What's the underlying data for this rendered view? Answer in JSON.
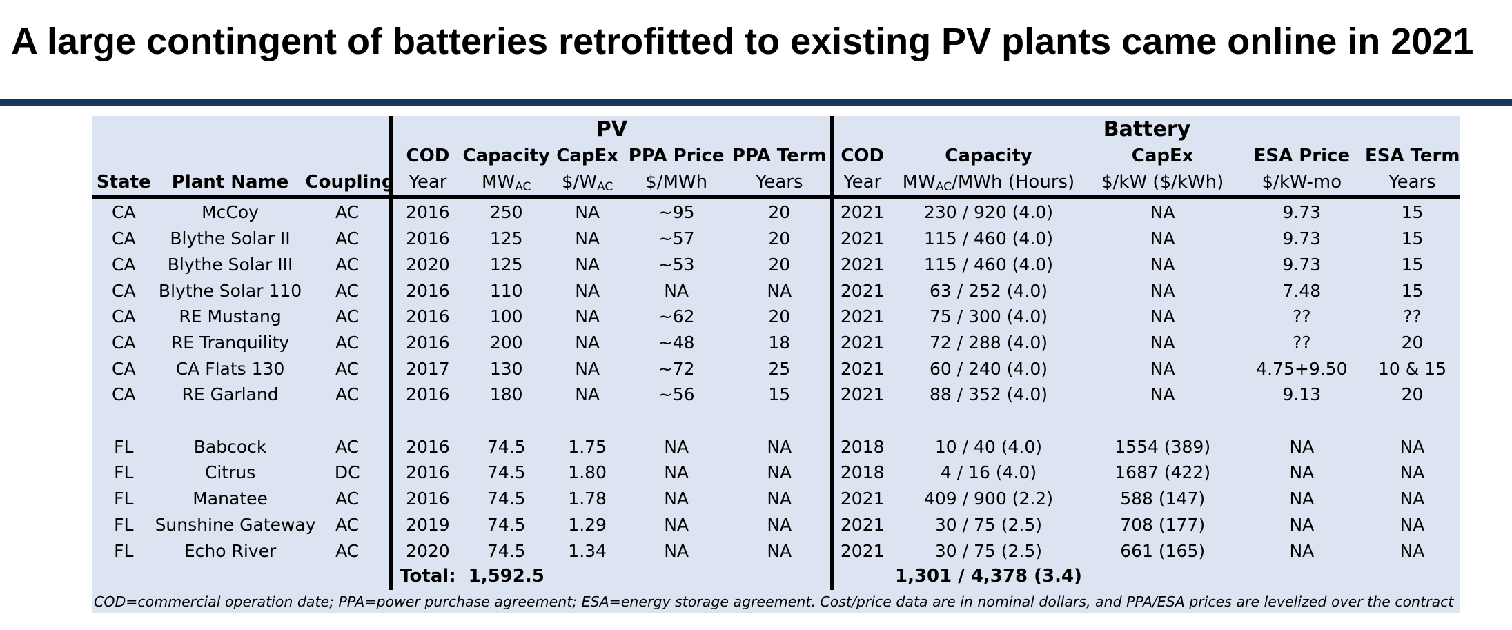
{
  "title": "A large contingent of batteries retrofitted to existing PV plants came online in 2021",
  "colors": {
    "rule": "#17375e",
    "panel": "#dce4f2"
  },
  "groups": {
    "pv": "PV",
    "battery": "Battery"
  },
  "headers": {
    "top": {
      "pv_cod": "COD",
      "pv_capacity": "Capacity",
      "pv_capex": "CapEx",
      "pv_ppa_price": "PPA Price",
      "pv_ppa_term": "PPA Term",
      "bat_cod": "COD",
      "bat_capacity": "Capacity",
      "bat_capex": "CapEx",
      "bat_esa_price": "ESA Price",
      "bat_esa_term": "ESA Term"
    },
    "bottom": {
      "state": "State",
      "plant": "Plant Name",
      "coupling": "Coupling",
      "pv_year": "Year",
      "pv_mw": "MW",
      "pv_mw_sub": "AC",
      "pv_w": "$/W",
      "pv_w_sub": "AC",
      "pv_mwh": "$/MWh",
      "pv_years": "Years",
      "bat_year": "Year",
      "bat_mw": "MW",
      "bat_mw_sub": "AC",
      "bat_mw_rest": "/MWh (Hours)",
      "bat_kw": "$/kW ($/kWh)",
      "bat_kwmo": "$/kW-mo",
      "bat_years": "Years"
    }
  },
  "rows": [
    [
      "CA",
      "McCoy",
      "AC",
      "2016",
      "250",
      "NA",
      "~95",
      "20",
      "2021",
      "230 / 920 (4.0)",
      "NA",
      "9.73",
      "15"
    ],
    [
      "CA",
      "Blythe Solar II",
      "AC",
      "2016",
      "125",
      "NA",
      "~57",
      "20",
      "2021",
      "115 / 460 (4.0)",
      "NA",
      "9.73",
      "15"
    ],
    [
      "CA",
      "Blythe Solar III",
      "AC",
      "2020",
      "125",
      "NA",
      "~53",
      "20",
      "2021",
      "115 / 460 (4.0)",
      "NA",
      "9.73",
      "15"
    ],
    [
      "CA",
      "Blythe Solar 110",
      "AC",
      "2016",
      "110",
      "NA",
      "NA",
      "NA",
      "2021",
      "63 / 252 (4.0)",
      "NA",
      "7.48",
      "15"
    ],
    [
      "CA",
      "RE Mustang",
      "AC",
      "2016",
      "100",
      "NA",
      "~62",
      "20",
      "2021",
      "75 / 300 (4.0)",
      "NA",
      "??",
      "??"
    ],
    [
      "CA",
      "RE Tranquility",
      "AC",
      "2016",
      "200",
      "NA",
      "~48",
      "18",
      "2021",
      "72 / 288 (4.0)",
      "NA",
      "??",
      "20"
    ],
    [
      "CA",
      "CA Flats 130",
      "AC",
      "2017",
      "130",
      "NA",
      "~72",
      "25",
      "2021",
      "60 / 240 (4.0)",
      "NA",
      "4.75+9.50",
      "10 & 15"
    ],
    [
      "CA",
      "RE Garland",
      "AC",
      "2016",
      "180",
      "NA",
      "~56",
      "15",
      "2021",
      "88 / 352 (4.0)",
      "NA",
      "9.13",
      "20"
    ],
    [
      "FL",
      "Babcock",
      "AC",
      "2016",
      "74.5",
      "1.75",
      "NA",
      "NA",
      "2018",
      "10 / 40 (4.0)",
      "1554 (389)",
      "NA",
      "NA"
    ],
    [
      "FL",
      "Citrus",
      "DC",
      "2016",
      "74.5",
      "1.80",
      "NA",
      "NA",
      "2018",
      "4 / 16 (4.0)",
      "1687 (422)",
      "NA",
      "NA"
    ],
    [
      "FL",
      "Manatee",
      "AC",
      "2016",
      "74.5",
      "1.78",
      "NA",
      "NA",
      "2021",
      "409 / 900 (2.2)",
      "588 (147)",
      "NA",
      "NA"
    ],
    [
      "FL",
      "Sunshine Gateway",
      "AC",
      "2019",
      "74.5",
      "1.29",
      "NA",
      "NA",
      "2021",
      "30 / 75 (2.5)",
      "708 (177)",
      "NA",
      "NA"
    ],
    [
      "FL",
      "Echo River",
      "AC",
      "2020",
      "74.5",
      "1.34",
      "NA",
      "NA",
      "2021",
      "30 / 75 (2.5)",
      "661 (165)",
      "NA",
      "NA"
    ]
  ],
  "totals": {
    "label": "Total:",
    "pv_capacity": "1,592.5",
    "battery_capacity": "1,301 / 4,378 (3.4)"
  },
  "footnote": "COD=commercial operation date; PPA=power purchase agreement; ESA=energy storage agreement. Cost/price data are in nominal dollars, and PPA/ESA prices are levelized over the contract term."
}
